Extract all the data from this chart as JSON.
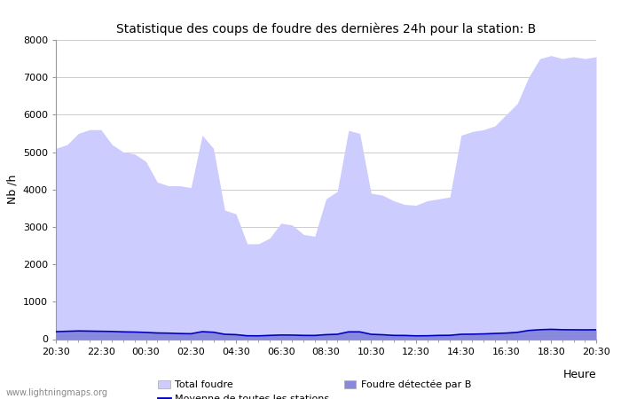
{
  "title": "Statistique des coups de foudre des dernières 24h pour la station: B",
  "xlabel": "Heure",
  "ylabel": "Nb /h",
  "ylim": [
    0,
    8000
  ],
  "yticks": [
    0,
    1000,
    2000,
    3000,
    4000,
    5000,
    6000,
    7000,
    8000
  ],
  "xtick_show": [
    "20:30",
    "22:30",
    "00:30",
    "02:30",
    "04:30",
    "06:30",
    "08:30",
    "10:30",
    "12:30",
    "14:30",
    "16:30",
    "18:30",
    "20:30"
  ],
  "xtick_show_pos": [
    0,
    4,
    8,
    12,
    16,
    20,
    24,
    28,
    32,
    36,
    40,
    44,
    48
  ],
  "xtick_minor_pos": [
    0,
    1,
    2,
    3,
    4,
    5,
    6,
    7,
    8,
    9,
    10,
    11,
    12,
    13,
    14,
    15,
    16,
    17,
    18,
    19,
    20,
    21,
    22,
    23,
    24,
    25,
    26,
    27,
    28,
    29,
    30,
    31,
    32,
    33,
    34,
    35,
    36,
    37,
    38,
    39,
    40,
    41,
    42,
    43,
    44,
    45,
    46,
    47,
    48
  ],
  "total_foudre_color": "#ccccff",
  "detected_foudre_color": "#8888dd",
  "moyenne_color": "#0000bb",
  "background_color": "#ffffff",
  "grid_color": "#cccccc",
  "watermark": "www.lightningmaps.org",
  "total_foudre_x": [
    0,
    1,
    2,
    3,
    4,
    5,
    6,
    7,
    8,
    9,
    10,
    11,
    12,
    13,
    14,
    15,
    16,
    17,
    18,
    19,
    20,
    21,
    22,
    23,
    24,
    25,
    26,
    27,
    28,
    29,
    30,
    31,
    32,
    33,
    34,
    35,
    36,
    37,
    38,
    39,
    40,
    41,
    42,
    43,
    44,
    45,
    46,
    47,
    48
  ],
  "total_foudre_y": [
    5100,
    5200,
    5500,
    5600,
    5600,
    5200,
    5000,
    4950,
    4750,
    4200,
    4100,
    4100,
    4050,
    5450,
    5100,
    3450,
    3350,
    2550,
    2550,
    2700,
    3100,
    3050,
    2800,
    2750,
    3750,
    3950,
    5580,
    5500,
    3900,
    3850,
    3700,
    3600,
    3580,
    3700,
    3750,
    3800,
    5450,
    5550,
    5600,
    5700,
    6000,
    6300,
    7000,
    7500,
    7580,
    7500,
    7550,
    7500,
    7550
  ],
  "detected_foudre_y": [
    200,
    210,
    220,
    215,
    210,
    205,
    195,
    190,
    180,
    165,
    160,
    150,
    145,
    200,
    185,
    130,
    120,
    90,
    88,
    100,
    110,
    108,
    100,
    98,
    120,
    130,
    195,
    195,
    130,
    118,
    100,
    98,
    88,
    90,
    100,
    102,
    130,
    133,
    140,
    152,
    162,
    182,
    232,
    252,
    262,
    252,
    250,
    248,
    250
  ],
  "moyenne_y": [
    200,
    210,
    220,
    215,
    210,
    205,
    195,
    190,
    180,
    165,
    160,
    150,
    145,
    200,
    185,
    130,
    120,
    90,
    88,
    100,
    110,
    108,
    100,
    98,
    120,
    130,
    195,
    195,
    130,
    118,
    100,
    98,
    88,
    90,
    100,
    102,
    130,
    133,
    140,
    152,
    162,
    182,
    232,
    252,
    262,
    252,
    250,
    248,
    250
  ]
}
